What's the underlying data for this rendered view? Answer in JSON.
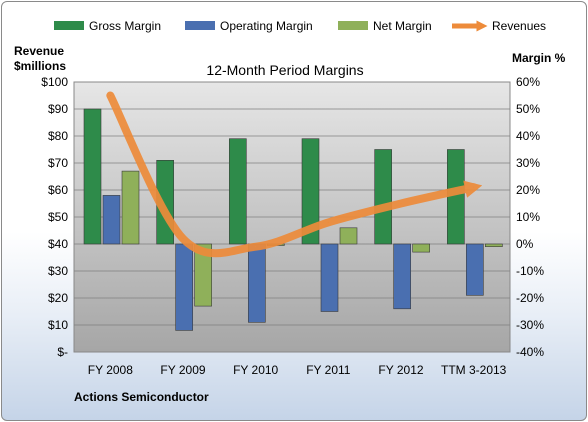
{
  "chart_data": {
    "type": "bar",
    "title": "12-Month Period Margins",
    "categories": [
      "FY 2008",
      "FY 2009",
      "FY 2010",
      "FY 2011",
      "FY 2012",
      "TTM 3-2013"
    ],
    "series": [
      {
        "name": "Gross Margin",
        "axis": "right",
        "kind": "bar",
        "color": "#2e8b4a",
        "values": [
          50,
          31,
          39,
          39,
          35,
          35
        ]
      },
      {
        "name": "Operating Margin",
        "axis": "right",
        "kind": "bar",
        "color": "#4a6fb0",
        "values": [
          18,
          -32,
          -29,
          -25,
          -24,
          -19
        ]
      },
      {
        "name": "Net Margin",
        "axis": "right",
        "kind": "bar",
        "color": "#8fb05a",
        "values": [
          27,
          -23,
          0,
          6,
          -3,
          -1
        ]
      },
      {
        "name": "Revenues",
        "axis": "left",
        "kind": "line",
        "color": "#ed8b3a",
        "values": [
          95,
          42,
          39,
          48,
          55,
          61
        ]
      }
    ],
    "left_axis": {
      "label_line1": "Revenue",
      "label_line2": "$millions",
      "min": 0,
      "max": 100,
      "step": 10,
      "ticks": [
        "$-",
        "$10",
        "$20",
        "$30",
        "$40",
        "$50",
        "$60",
        "$70",
        "$80",
        "$90",
        "$100"
      ]
    },
    "right_axis": {
      "label": "Margin %",
      "min": -40,
      "max": 60,
      "step": 10,
      "ticks": [
        "-40%",
        "-30%",
        "-20%",
        "-10%",
        "0%",
        "10%",
        "20%",
        "30%",
        "40%",
        "50%",
        "60%"
      ]
    },
    "legend_position": "top",
    "grid": true,
    "footer": "Actions Semiconductor"
  }
}
